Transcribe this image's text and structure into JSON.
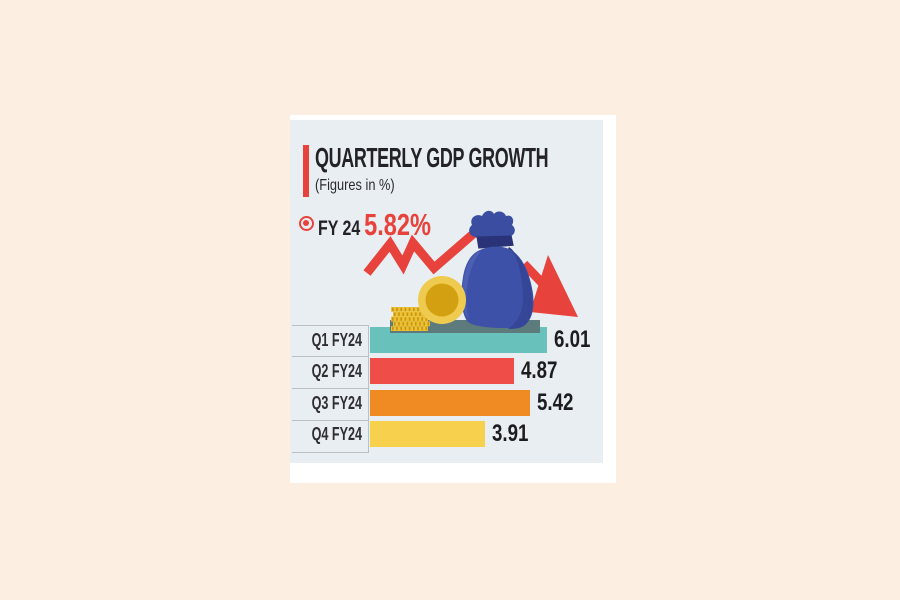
{
  "header": {
    "title": "QUARTERLY GDP GROWTH",
    "subtitle": "(Figures in %)",
    "fy_label": "FY 24",
    "fy_value": "5.82%"
  },
  "chart_data": {
    "type": "bar",
    "orientation": "horizontal",
    "title": "QUARTERLY GDP GROWTH",
    "unit": "%",
    "categories": [
      "Q1 FY24",
      "Q2 FY24",
      "Q3 FY24",
      "Q4 FY24"
    ],
    "values": [
      6.01,
      4.87,
      5.42,
      3.91
    ],
    "value_labels": [
      "6.01",
      "4.87",
      "5.42",
      "3.91"
    ],
    "bar_colors": [
      "#68c2bb",
      "#ef4d48",
      "#ef8b22",
      "#f7d14e"
    ],
    "annotation": {
      "label": "FY 24",
      "value": "5.82%"
    },
    "xlim": [
      0,
      6.5
    ],
    "grid": false,
    "legend": false
  },
  "colors": {
    "background": "#fcefe2",
    "card": "#e9eef2",
    "accent_red": "#e8423c",
    "text_dark": "#232226",
    "money_bag_blue": "#3d51a8",
    "coin_gold": "#d9a414"
  }
}
